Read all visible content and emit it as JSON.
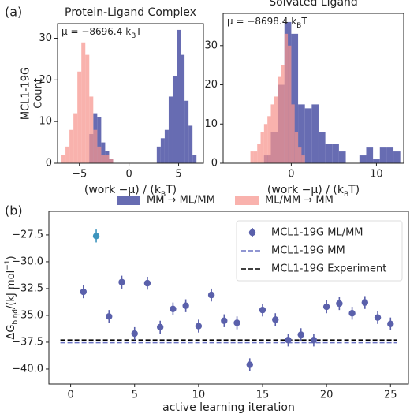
{
  "panel_labels": [
    "(a)",
    "(b)"
  ],
  "chart_data": [
    {
      "type": "histogram",
      "title": "Protein-Ligand Complex",
      "annotation": [
        "μ = −8696.4 ",
        "k",
        "B",
        "T"
      ],
      "xlabel": [
        "(work −μ) / (k",
        "B",
        "T)"
      ],
      "ylabel": [
        "MCL1-19G",
        "Count"
      ],
      "xlim": [
        -7.2,
        7.5
      ],
      "xticks": [
        {
          "value": -5,
          "label": "−5"
        },
        0,
        5
      ],
      "ylim": [
        0,
        33.5
      ],
      "yticks": [
        0,
        10,
        20,
        30
      ],
      "series": [
        {
          "name": "MM → ML/MM",
          "color": "#5a60ab",
          "bins": [
            -4.0,
            -3.6,
            -3.2,
            -2.8,
            -2.4,
            -2.0,
            -1.6,
            -1.2,
            -0.8,
            -0.4,
            0.0,
            0.4,
            0.8,
            1.2,
            1.6,
            2.0,
            2.4,
            2.8,
            3.2,
            3.6,
            4.0,
            4.4,
            4.8,
            5.2,
            5.6,
            6.0,
            6.4,
            6.8
          ],
          "values": [
            7,
            12,
            11,
            5,
            3,
            1,
            0,
            0,
            0,
            0,
            0,
            0,
            0,
            0,
            0,
            0,
            0,
            4,
            6,
            8,
            16,
            21,
            32,
            26,
            15,
            9,
            2
          ]
        },
        {
          "name": "ML/MM → MM",
          "color": "#f7948d",
          "bins": [
            -6.8,
            -6.4,
            -6.0,
            -5.6,
            -5.2,
            -4.8,
            -4.4,
            -4.0,
            -3.6,
            -3.2,
            -2.8,
            -2.4,
            -2.0,
            -1.6
          ],
          "values": [
            2,
            4,
            8,
            12,
            22,
            29,
            26,
            16,
            8,
            4,
            2,
            2,
            1
          ]
        }
      ]
    },
    {
      "type": "histogram",
      "title": "Solvated Ligand",
      "annotation": [
        "μ = −8698.4 ",
        "k",
        "B",
        "T"
      ],
      "xlabel": [
        "(work −μ) / (k",
        "B",
        "T)"
      ],
      "xlim": [
        -8.0,
        13.2
      ],
      "xticks": [
        0,
        10
      ],
      "ylim": [
        0,
        38.2
      ],
      "yticks": [
        0,
        10,
        20,
        30
      ],
      "series": [
        {
          "color": "#5a60ab",
          "bins": [
            -3.2,
            -2.4,
            -1.6,
            -0.8,
            0.0,
            0.8,
            1.6,
            2.4,
            3.2,
            4.0,
            4.8,
            5.6,
            6.4,
            7.2,
            8.0,
            8.8,
            9.6,
            10.4,
            11.2,
            12.0,
            12.8
          ],
          "values": [
            2,
            8,
            20,
            36,
            33,
            15,
            14,
            15,
            8,
            5,
            5,
            3,
            0,
            0,
            2,
            4,
            1,
            4,
            4,
            3
          ]
        },
        {
          "color": "#f7948d",
          "bins": [
            -4.8,
            -4.4,
            -4.0,
            -3.6,
            -3.2,
            -2.8,
            -2.4,
            -2.0,
            -1.6,
            -1.2,
            -0.8,
            -0.4,
            0.0,
            0.4,
            0.8,
            1.2,
            1.6
          ],
          "values": [
            3,
            3,
            5,
            8,
            10,
            12,
            15,
            17,
            22,
            25,
            33,
            30,
            15,
            8,
            4,
            2
          ]
        }
      ]
    },
    {
      "type": "scatter",
      "ylabel": [
        "ΔG",
        "bind",
        "/(kJ mol",
        "−1",
        ")"
      ],
      "xlabel": "active learning iteration",
      "xlim": [
        -1.7,
        26.4
      ],
      "xticks": [
        0,
        5,
        10,
        15,
        20,
        25
      ],
      "ylim": [
        -41.4,
        -25.3
      ],
      "yticks": [
        {
          "value": -40.0,
          "label": "−40.0"
        },
        {
          "value": -37.5,
          "label": "−37.5"
        },
        {
          "value": -35.0,
          "label": "−35.0"
        },
        {
          "value": -32.5,
          "label": "−32.5"
        },
        {
          "value": -30.0,
          "label": "−30.0"
        },
        {
          "value": -27.5,
          "label": "−27.5"
        }
      ],
      "legend": "upper right",
      "series": [
        {
          "name": "MCL1-19G ML/MM",
          "color": "#5a60ab",
          "x": [
            1,
            2,
            3,
            4,
            5,
            6,
            7,
            8,
            9,
            10,
            11,
            12,
            13,
            14,
            15,
            16,
            17,
            18,
            19,
            20,
            21,
            22,
            23,
            24,
            25
          ],
          "values": [
            -32.8,
            -27.6,
            -35.1,
            -31.9,
            -36.7,
            -32.0,
            -36.1,
            -34.4,
            -34.1,
            -36.0,
            -33.1,
            -35.5,
            -35.7,
            -39.6,
            -34.5,
            -35.4,
            -37.3,
            -36.8,
            -37.3,
            -34.2,
            -33.9,
            -34.8,
            -33.8,
            -35.2,
            -35.8
          ],
          "errors": [
            0.6,
            0.6,
            0.6,
            0.6,
            0.6,
            0.6,
            0.6,
            0.6,
            0.6,
            0.6,
            0.6,
            0.6,
            0.6,
            0.6,
            0.6,
            0.6,
            0.6,
            0.6,
            0.6,
            0.6,
            0.6,
            0.6,
            0.6,
            0.6,
            0.6
          ],
          "point_colors": [
            "#5a60ab",
            "#3d94bd",
            "#5a60ab",
            "#5a60ab",
            "#5a60ab",
            "#5a60ab",
            "#5a60ab",
            "#5a60ab",
            "#5a60ab",
            "#5a60ab",
            "#5a60ab",
            "#5a60ab",
            "#5a60ab",
            "#5a60ab",
            "#5a60ab",
            "#5a60ab",
            "#5a60ab",
            "#5a60ab",
            "#5a60ab",
            "#5a60ab",
            "#5a60ab",
            "#5a60ab",
            "#5a60ab",
            "#5a60ab",
            "#5a60ab"
          ]
        }
      ],
      "hlines": [
        {
          "name": "MCL1-19G MM",
          "value": -37.55,
          "color": "#6b73c4"
        },
        {
          "name": "MCL1-19G Experiment",
          "value": -37.3,
          "color": "#000000"
        }
      ]
    }
  ]
}
